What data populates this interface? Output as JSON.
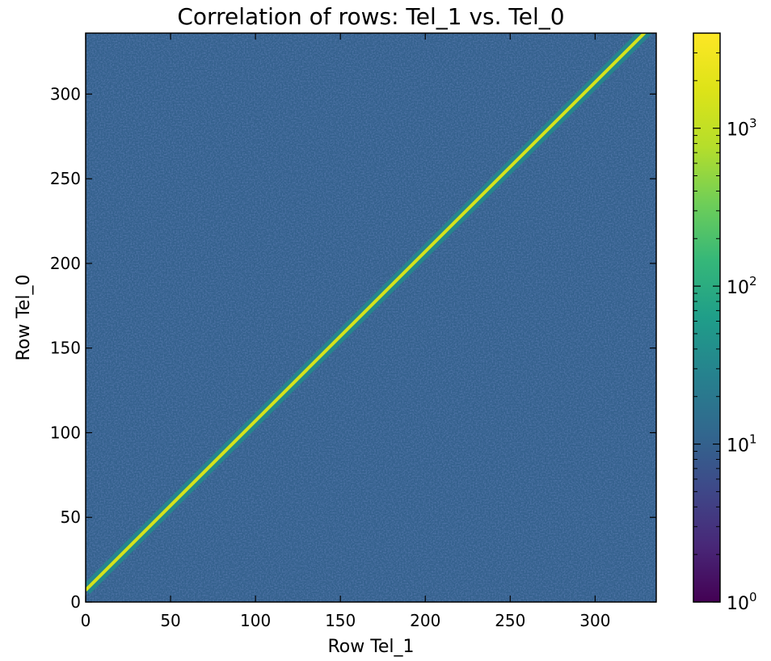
{
  "chart_data": {
    "type": "heatmap",
    "title": "Correlation of rows: Tel_1 vs. Tel_0",
    "xlabel": "Row Tel_1",
    "ylabel": "Row Tel_0",
    "xlim": [
      0,
      336
    ],
    "ylim": [
      0,
      336
    ],
    "x_ticks": [
      0,
      50,
      100,
      150,
      200,
      250,
      300
    ],
    "y_ticks": [
      0,
      50,
      100,
      150,
      200,
      250,
      300
    ],
    "x_tick_labels": [
      "0",
      "50",
      "100",
      "150",
      "200",
      "250",
      "300"
    ],
    "y_tick_labels": [
      "0",
      "50",
      "100",
      "150",
      "200",
      "250",
      "300"
    ],
    "colorbar": {
      "scale": "log",
      "range": [
        1,
        4000
      ],
      "colormap": "viridis",
      "ticks": [
        {
          "value": 1,
          "base": "10",
          "exp": "0"
        },
        {
          "value": 10,
          "base": "10",
          "exp": "1"
        },
        {
          "value": 100,
          "base": "10",
          "exp": "2"
        },
        {
          "value": 1000,
          "base": "10",
          "exp": "3"
        }
      ]
    },
    "features": {
      "background_counts": 10,
      "diagonal_line": {
        "slope": 1.0,
        "intercept": 7,
        "x_range": [
          0,
          336
        ],
        "counts": 1500
      }
    },
    "grid": false
  }
}
